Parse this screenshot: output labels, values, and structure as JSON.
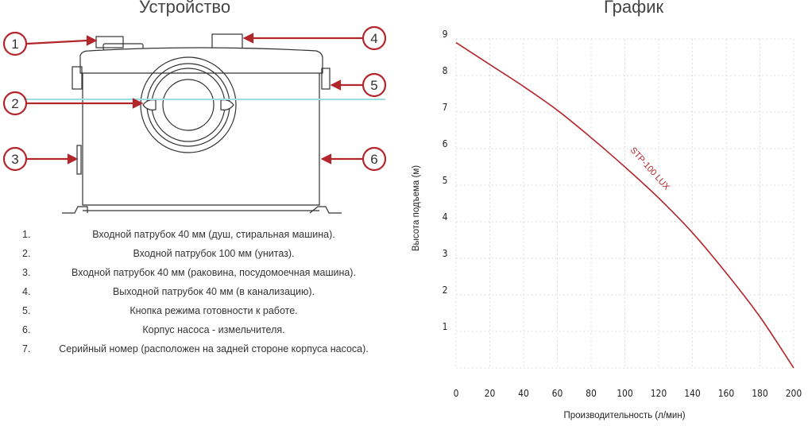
{
  "device": {
    "title": "Устройство",
    "callouts": [
      "1",
      "2",
      "3",
      "4",
      "5",
      "6"
    ],
    "legend": [
      {
        "num": "1.",
        "text": "Входной патрубок 40 мм (душ, стиральная машина)."
      },
      {
        "num": "2.",
        "text": "Входной патрубок 100 мм (унитаз)."
      },
      {
        "num": "3.",
        "text": "Входной патрубок 40 мм (раковина, посудомоечная машина)."
      },
      {
        "num": "4.",
        "text": "Выходной патрубок 40 мм (в канализацию)."
      },
      {
        "num": "5.",
        "text": "Кнопка режима готовности к работе."
      },
      {
        "num": "6.",
        "text": "Корпус насоса - измельчителя."
      },
      {
        "num": "7.",
        "text": "Серийный номер (расположен на задней стороне корпуса насоса)."
      }
    ],
    "accent_color": "#c0272d"
  },
  "chart_data": {
    "type": "line",
    "title": "График",
    "xlabel": "Производительность (л/мин)",
    "ylabel": "Высота подъема (м)",
    "xlim": [
      0,
      200
    ],
    "ylim": [
      0,
      9
    ],
    "x_ticks": [
      "0",
      "20",
      "40",
      "60",
      "80",
      "100",
      "120",
      "140",
      "160",
      "180",
      "200"
    ],
    "y_ticks": [
      "1",
      "2",
      "3",
      "4",
      "5",
      "6",
      "7",
      "8",
      "9"
    ],
    "grid": true,
    "series": [
      {
        "name": "STP-100 LUX",
        "color": "#b3262c",
        "x": [
          0,
          20,
          40,
          60,
          80,
          100,
          120,
          140,
          160,
          180,
          200
        ],
        "y": [
          8.9,
          8.3,
          7.7,
          7.05,
          6.3,
          5.5,
          4.65,
          3.7,
          2.6,
          1.4,
          0
        ]
      }
    ]
  }
}
